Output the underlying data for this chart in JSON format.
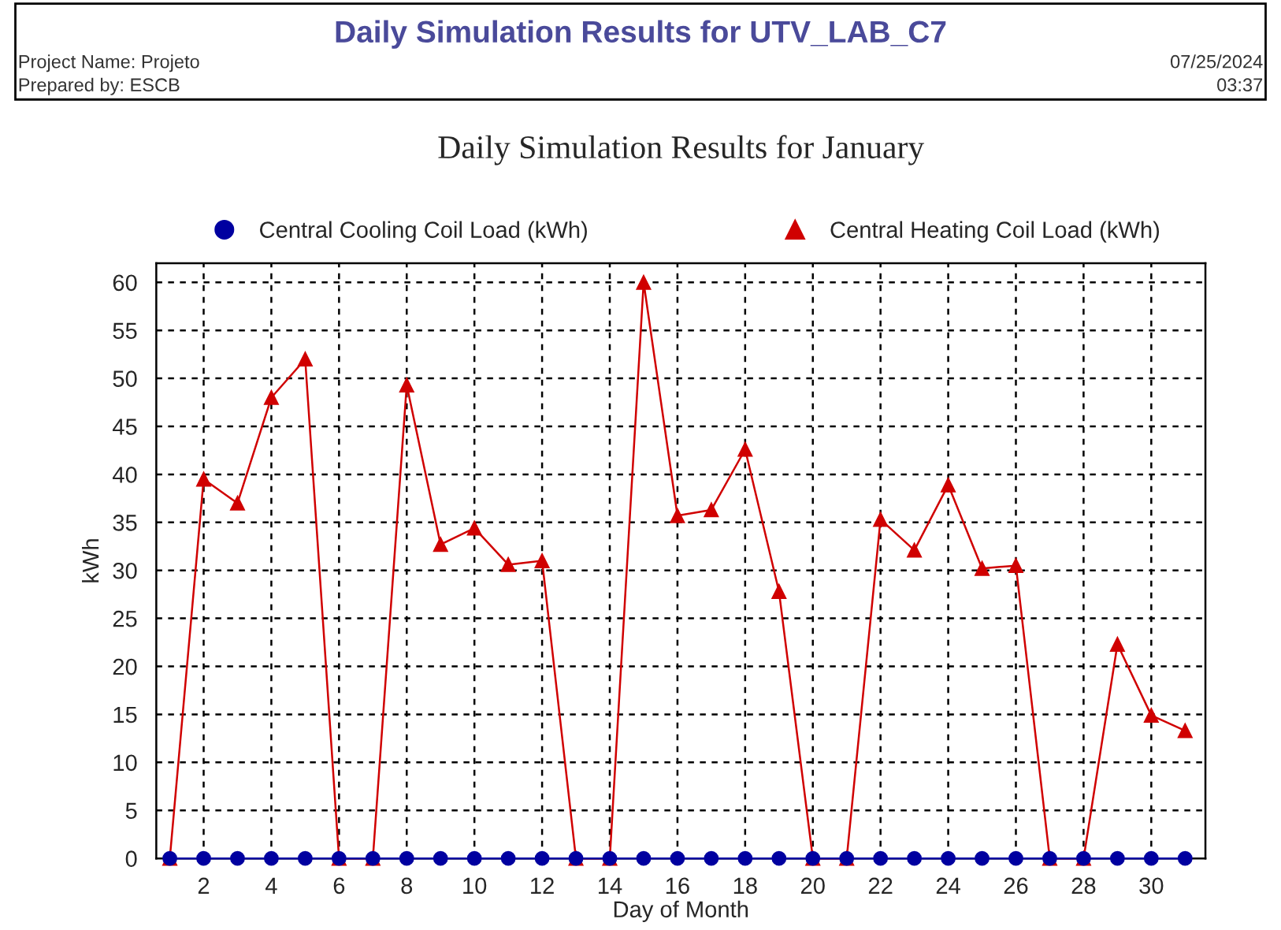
{
  "chart_data": {
    "type": "line",
    "title": "Daily Simulation Results for UTV_LAB_C7",
    "subtitle": "Daily Simulation Results for January",
    "xlabel": "Day of Month",
    "ylabel": "kWh",
    "annotations": [
      "Project Name: Projeto",
      "Prepared by: ESCB",
      "07/25/2024",
      "03:37"
    ],
    "x": [
      1,
      2,
      3,
      4,
      5,
      6,
      7,
      8,
      9,
      10,
      11,
      12,
      13,
      14,
      15,
      16,
      17,
      18,
      19,
      20,
      21,
      22,
      23,
      24,
      25,
      26,
      27,
      28,
      29,
      30,
      31
    ],
    "series": [
      {
        "name": "Central Cooling Coil Load (kWh)",
        "color": "#0000a0",
        "marker": "circle",
        "values": [
          0,
          0,
          0,
          0,
          0,
          0,
          0,
          0,
          0,
          0,
          0,
          0,
          0,
          0,
          0,
          0,
          0,
          0,
          0,
          0,
          0,
          0,
          0,
          0,
          0,
          0,
          0,
          0,
          0,
          0,
          0
        ]
      },
      {
        "name": "Central Heating Coil Load (kWh)",
        "color": "#d00000",
        "marker": "triangle",
        "values": [
          0,
          39.5,
          37,
          48,
          52,
          0,
          0,
          49.3,
          32.7,
          34.4,
          30.6,
          31,
          0,
          0,
          60,
          35.7,
          36.3,
          42.6,
          27.8,
          0,
          0,
          35.3,
          32.1,
          38.9,
          30.2,
          30.5,
          0,
          0,
          22.3,
          14.9,
          13.3
        ]
      }
    ],
    "xlim": [
      0.6,
      31.6
    ],
    "ylim": [
      0,
      62
    ],
    "xticks": [
      2,
      4,
      6,
      8,
      10,
      12,
      14,
      16,
      18,
      20,
      22,
      24,
      26,
      28,
      30
    ],
    "yticks": [
      0,
      5,
      10,
      15,
      20,
      25,
      30,
      35,
      40,
      45,
      50,
      55,
      60
    ],
    "grid": true,
    "legend": "top",
    "line_style": "solid"
  }
}
